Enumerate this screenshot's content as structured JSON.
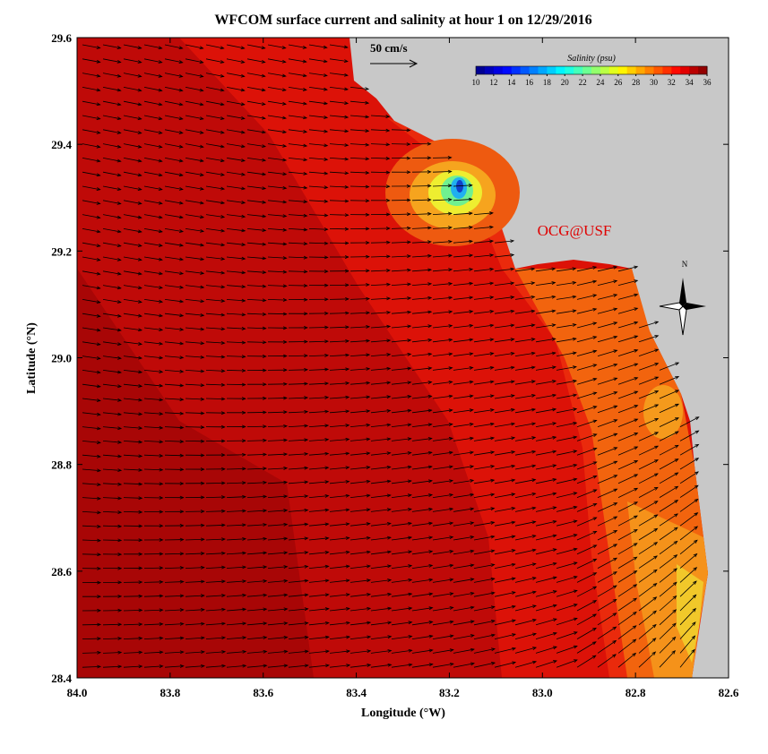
{
  "title": "WFCOM surface current and salinity at hour 1 on 12/29/2016",
  "map": {
    "xlabel": "Longitude (°W)",
    "ylabel": "Latitude (°N)",
    "xlim": [
      84.0,
      82.6
    ],
    "ylim": [
      28.4,
      29.6
    ],
    "xticks": [
      {
        "value": 84.0,
        "label": "84.0"
      },
      83.8,
      83.6,
      83.4,
      83.2,
      {
        "value": 83.0,
        "label": "83.0"
      },
      82.8,
      82.6
    ],
    "yticks": [
      28.4,
      28.6,
      28.8,
      {
        "value": 29.0,
        "label": "29.0"
      },
      29.2,
      29.4,
      29.6
    ]
  },
  "colorbar": {
    "title": "Salinity (psu)",
    "lim": [
      10,
      36
    ],
    "ticks": [
      10,
      12,
      14,
      16,
      18,
      20,
      22,
      24,
      26,
      28,
      30,
      32,
      34,
      36
    ]
  },
  "scale_arrow": "50 cm/s",
  "watermark": "OCG@USF",
  "compass": "N"
}
